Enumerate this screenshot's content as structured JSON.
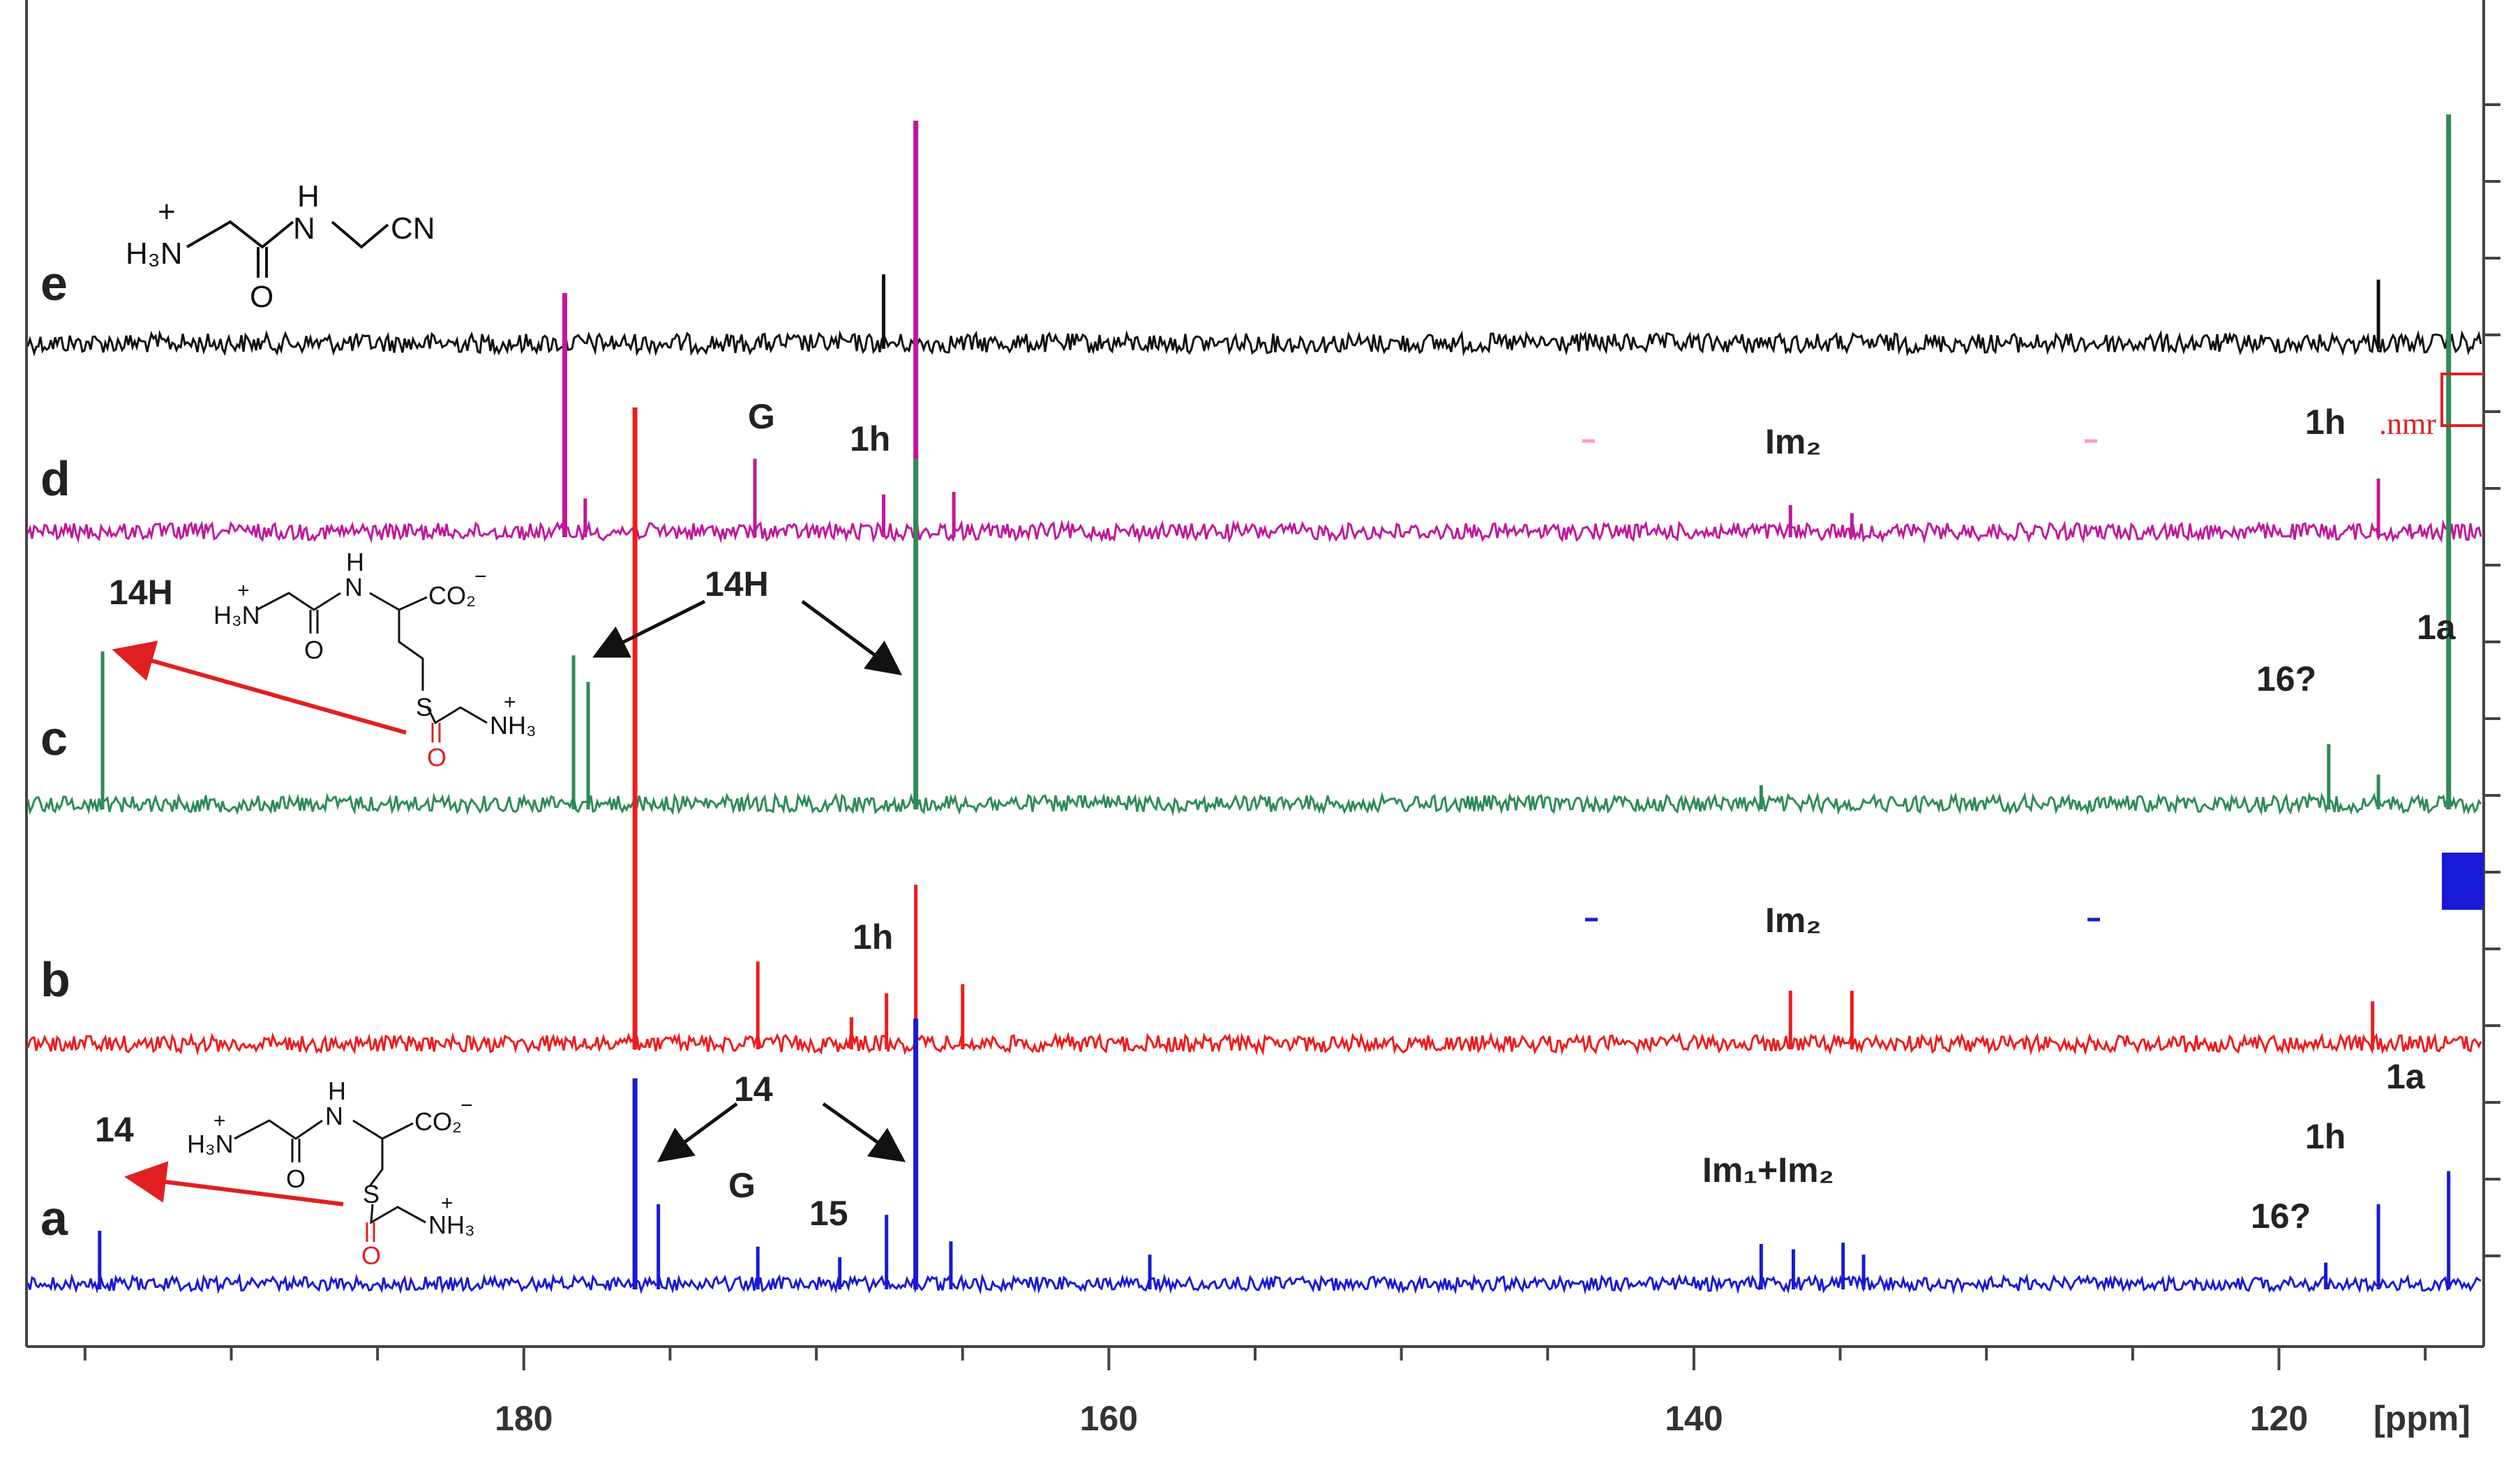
{
  "chart_data": {
    "type": "line",
    "title": "",
    "xlabel": "[ppm]",
    "ylabel": "",
    "xlim": [
      197,
      113
    ],
    "x_reversed": true,
    "grid": false,
    "x_ticks": [
      180,
      160,
      140,
      120
    ],
    "x_tick_labels": [
      "180",
      "160",
      "140",
      "120"
    ],
    "series": [
      {
        "name": "a",
        "color": "#1a1ad6",
        "peaks": [
          {
            "ppm": 194.5,
            "height": 0.4
          },
          {
            "ppm": 176.2,
            "height": 1.55
          },
          {
            "ppm": 175.4,
            "height": 0.6
          },
          {
            "ppm": 172.0,
            "height": 0.28
          },
          {
            "ppm": 169.2,
            "height": 0.2
          },
          {
            "ppm": 167.6,
            "height": 0.52
          },
          {
            "ppm": 166.6,
            "height": 2.0
          },
          {
            "ppm": 165.4,
            "height": 0.32
          },
          {
            "ppm": 158.6,
            "height": 0.22
          },
          {
            "ppm": 137.7,
            "height": 0.3
          },
          {
            "ppm": 136.6,
            "height": 0.26
          },
          {
            "ppm": 134.9,
            "height": 0.31
          },
          {
            "ppm": 134.2,
            "height": 0.22
          },
          {
            "ppm": 118.4,
            "height": 0.16
          },
          {
            "ppm": 116.6,
            "height": 0.6
          },
          {
            "ppm": 114.2,
            "height": 0.85
          }
        ]
      },
      {
        "name": "b",
        "color": "#ee1c1c",
        "peaks": [
          {
            "ppm": 176.2,
            "height": 4.8
          },
          {
            "ppm": 172.0,
            "height": 0.62
          },
          {
            "ppm": 168.8,
            "height": 0.2
          },
          {
            "ppm": 167.6,
            "height": 0.38
          },
          {
            "ppm": 166.6,
            "height": 1.2
          },
          {
            "ppm": 165.0,
            "height": 0.45
          },
          {
            "ppm": 136.7,
            "height": 0.4
          },
          {
            "ppm": 134.6,
            "height": 0.4
          },
          {
            "ppm": 116.8,
            "height": 0.32
          }
        ]
      },
      {
        "name": "c",
        "color": "#2e8b57",
        "peaks": [
          {
            "ppm": 194.4,
            "height": 1.15
          },
          {
            "ppm": 178.3,
            "height": 1.12
          },
          {
            "ppm": 177.8,
            "height": 0.92
          },
          {
            "ppm": 166.6,
            "height": 2.6
          },
          {
            "ppm": 137.7,
            "height": 0.14
          },
          {
            "ppm": 118.3,
            "height": 0.45
          },
          {
            "ppm": 116.6,
            "height": 0.22
          },
          {
            "ppm": 114.2,
            "height": 5.2
          }
        ]
      },
      {
        "name": "d",
        "color": "#c0189c",
        "peaks": [
          {
            "ppm": 178.6,
            "height": 1.8
          },
          {
            "ppm": 177.9,
            "height": 0.25
          },
          {
            "ppm": 172.1,
            "height": 0.55
          },
          {
            "ppm": 167.7,
            "height": 0.28
          },
          {
            "ppm": 166.6,
            "height": 3.1
          },
          {
            "ppm": 165.3,
            "height": 0.3
          },
          {
            "ppm": 136.7,
            "height": 0.2
          },
          {
            "ppm": 134.6,
            "height": 0.14
          },
          {
            "ppm": 116.6,
            "height": 0.4
          }
        ]
      },
      {
        "name": "e",
        "color": "#111111",
        "peaks": [
          {
            "ppm": 167.7,
            "height": 0.52
          },
          {
            "ppm": 116.6,
            "height": 0.48
          }
        ]
      }
    ],
    "trace_labels": [
      "a",
      "b",
      "c",
      "d",
      "e"
    ],
    "annotations": {
      "e": [],
      "d": [
        "G",
        "1h",
        "Im₂",
        "1h"
      ],
      "c": [
        "14H",
        "14H",
        "16?",
        "1a"
      ],
      "b": [
        "1h",
        "Im₂"
      ],
      "a": [
        "14",
        "14",
        "G",
        "15",
        "Im₁+Im₂",
        "16?",
        "1h",
        "1a"
      ]
    },
    "corner_text": ".nmr"
  },
  "structures": {
    "e": {
      "lines": [
        "H₃N",
        "H",
        "N",
        "CN",
        "O",
        "+"
      ]
    },
    "c": {
      "lines": [
        "H₃N",
        "N",
        "H",
        "CO₂",
        "O",
        "S",
        "O",
        "NH₃",
        "+",
        "+",
        "−"
      ]
    },
    "a": {
      "lines": [
        "H₃N",
        "N",
        "H",
        "CO₂",
        "O",
        "S",
        "O",
        "NH₃",
        "+",
        "+",
        "−"
      ]
    }
  }
}
